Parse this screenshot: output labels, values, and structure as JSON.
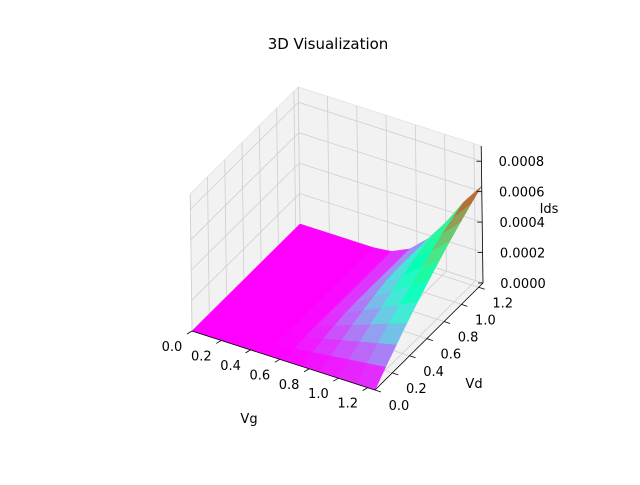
{
  "chart_data": {
    "type": "surface",
    "title": "3D Visualization",
    "xlabel": "Vg",
    "ylabel": "Vd",
    "zlabel": "Ids",
    "xlim": [
      0.0,
      1.25
    ],
    "ylim": [
      0.0,
      1.25
    ],
    "zlim": [
      0.0,
      0.0009
    ],
    "xticks": [
      "0.0",
      "0.2",
      "0.4",
      "0.6",
      "0.8",
      "1.0",
      "1.2"
    ],
    "yticks": [
      "0.0",
      "0.2",
      "0.4",
      "0.6",
      "0.8",
      "1.0",
      "1.2"
    ],
    "zticks": [
      "0.0000",
      "0.0002",
      "0.0004",
      "0.0006",
      "0.0008"
    ],
    "grid": true,
    "colormap": "rainbow",
    "pane_color": "#f2f2f2",
    "grid_color": "#cfcfcf",
    "vg": [
      0.0,
      0.125,
      0.25,
      0.375,
      0.5,
      0.625,
      0.75,
      0.875,
      1.0,
      1.125,
      1.25
    ],
    "vd": [
      0.0,
      0.125,
      0.25,
      0.375,
      0.5,
      0.625,
      0.75,
      0.875,
      1.0,
      1.125,
      1.25
    ],
    "ids": [
      [
        0,
        0,
        0,
        0,
        0,
        0,
        0,
        0,
        0,
        0,
        0
      ],
      [
        0,
        0,
        0,
        0,
        0,
        0,
        0,
        0,
        0,
        0,
        0
      ],
      [
        0,
        0,
        0,
        0,
        0,
        0,
        0,
        0,
        0,
        0,
        0
      ],
      [
        0,
        0,
        0,
        0,
        0,
        0,
        0,
        0,
        0,
        0,
        0
      ],
      [
        0,
        0,
        0,
        0,
        0,
        0,
        0,
        0,
        0,
        0,
        0
      ],
      [
        0,
        7.42e-06,
        1.219e-05,
        1.406e-05,
        1.406e-05,
        1.406e-05,
        1.406e-05,
        1.406e-05,
        1.406e-05,
        1.406e-05,
        1.406e-05
      ],
      [
        0,
        2.18e-05,
        4.013e-05,
        5.531e-05,
        6.544e-05,
        6.881e-05,
        6.881e-05,
        6.881e-05,
        6.881e-05,
        6.881e-05,
        6.881e-05
      ],
      [
        0,
        3.617e-05,
        6.906e-05,
        9.844e-05,
        0.00012431,
        0.00014666,
        0.00016553,
        0.000174,
        0.000174,
        0.000174,
        0.000174
      ],
      [
        0,
        5.055e-05,
        9.781e-05,
        0.00014156,
        0.00018181,
        0.00021856,
        0.00025181,
        0.00028156,
        0.00030781,
        0.00032063,
        0.00032063
      ],
      [
        0,
        6.492e-05,
        0.00012656,
        0.00018469,
        0.00023931,
        0.00029044,
        0.00033806,
        0.00038219,
        0.00042281,
        0.00045994,
        0.00049356
      ],
      [
        0,
        7.93e-05,
        0.00015531,
        0.00022781,
        0.00029681,
        0.00036231,
        0.00042431,
        0.00048281,
        0.00053781,
        0.00058931,
        0.00063731
      ]
    ]
  }
}
